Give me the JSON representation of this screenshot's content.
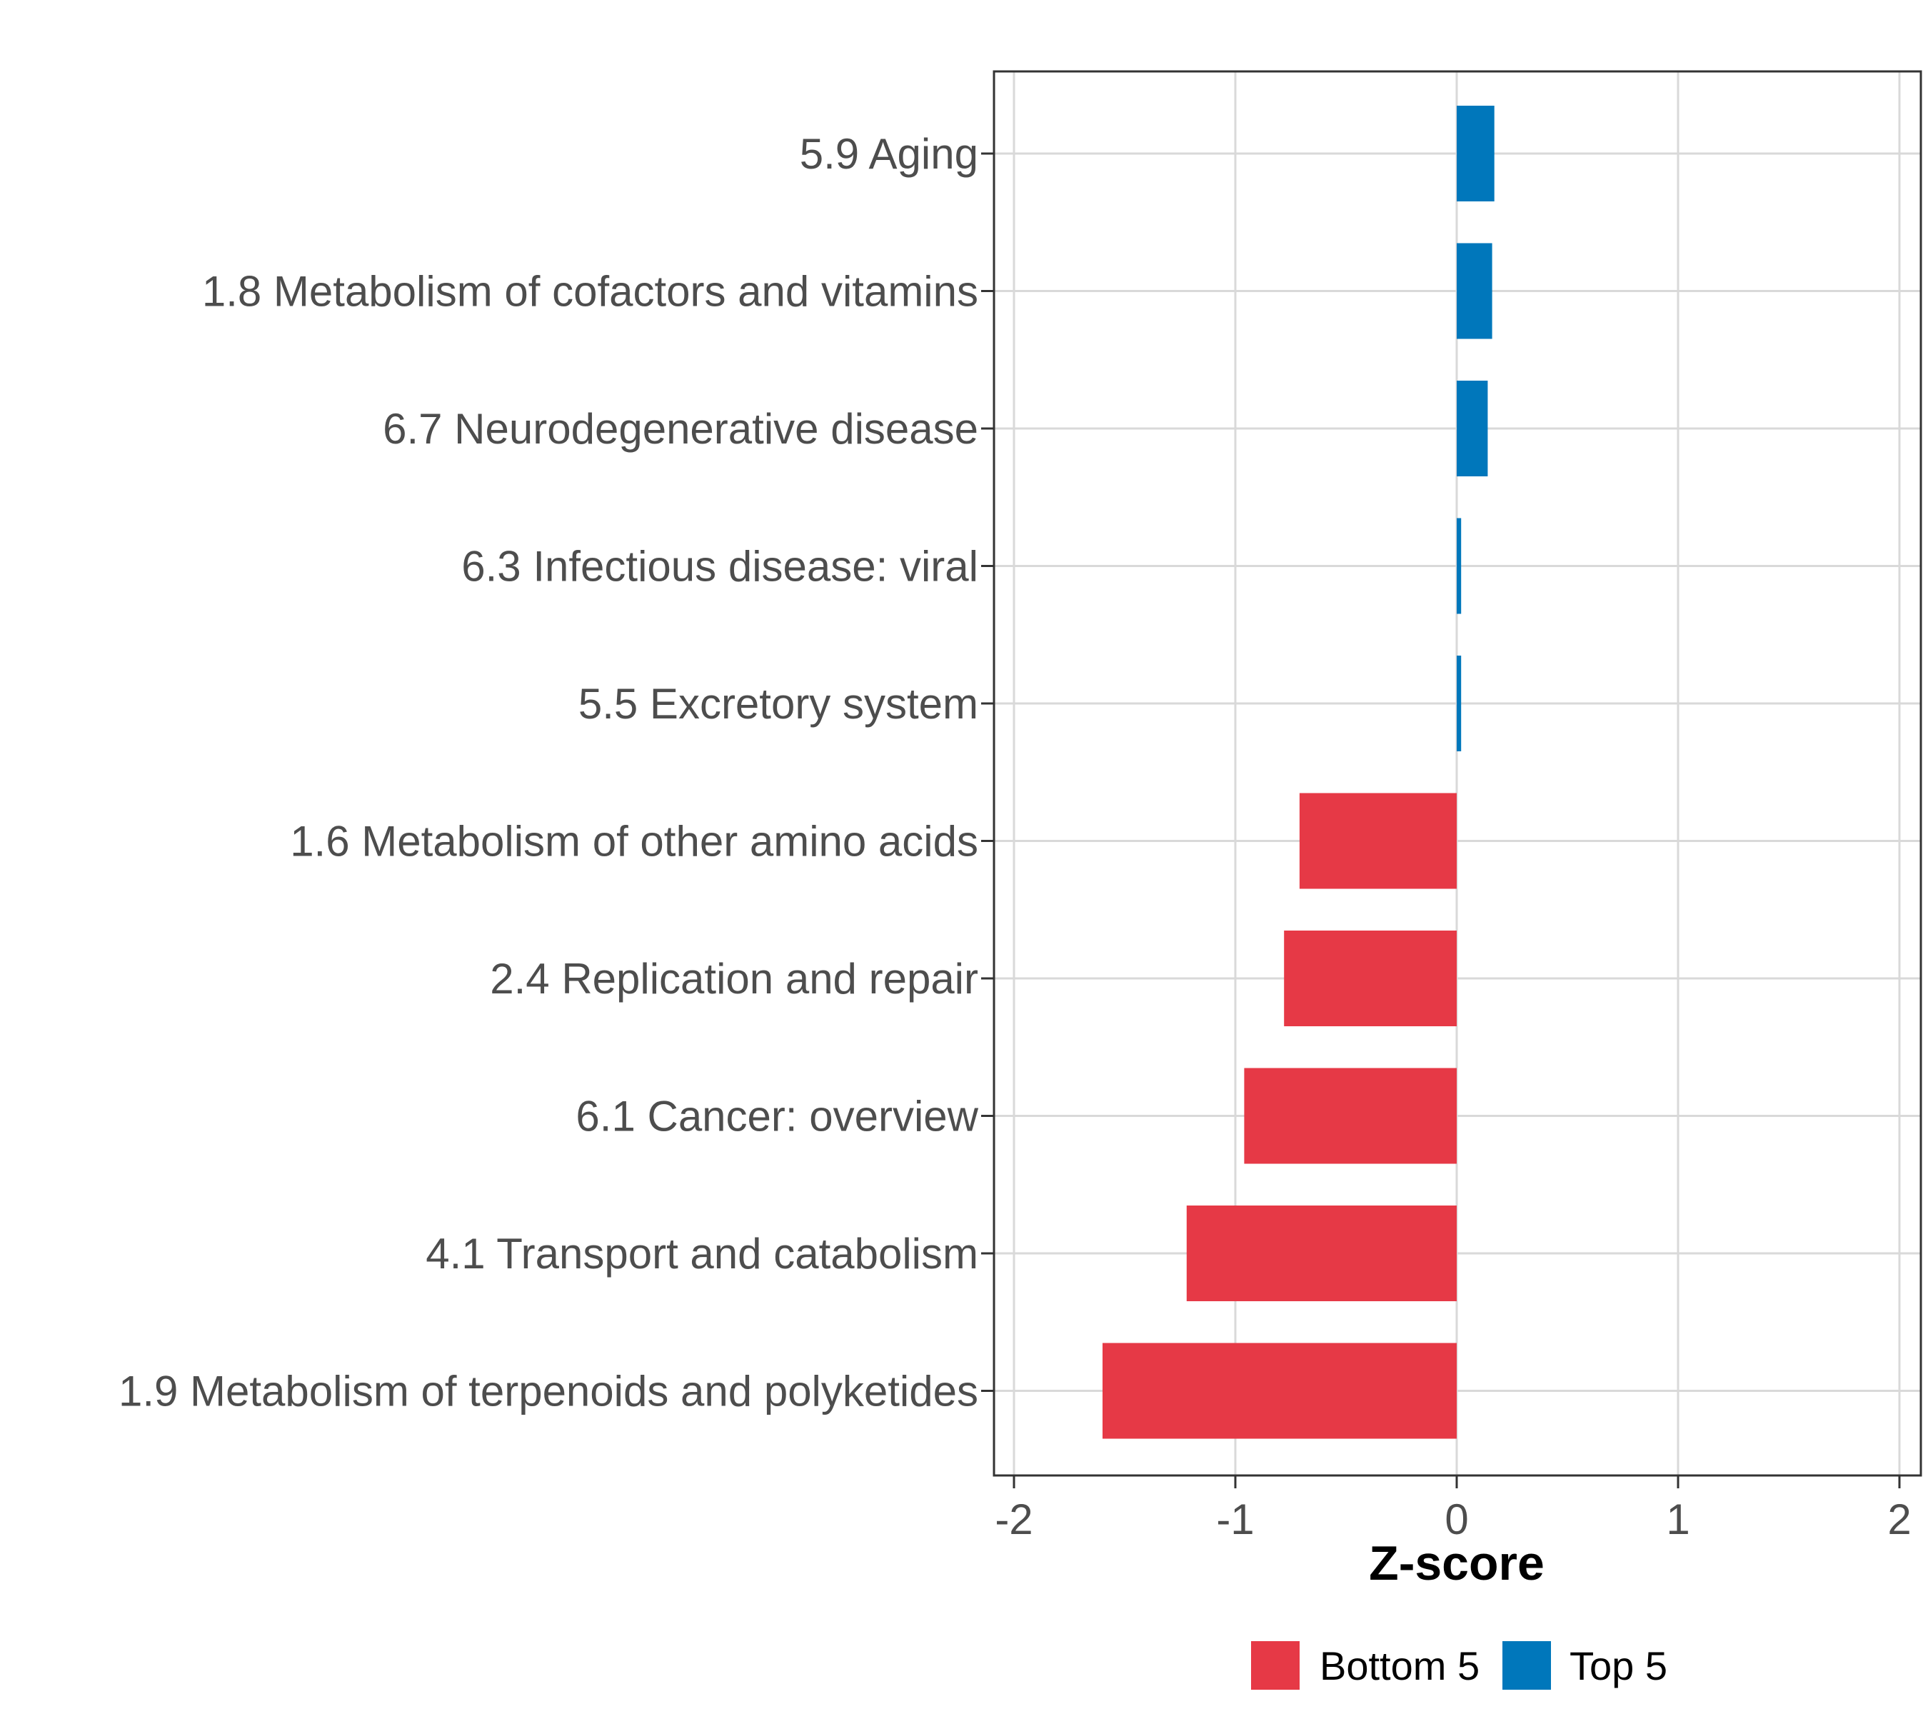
{
  "chart_data": {
    "type": "bar",
    "orientation": "horizontal",
    "title": "",
    "xlabel": "Z-score",
    "ylabel": "",
    "xlim": [
      -2,
      2
    ],
    "xticks": [
      "-2",
      "-1",
      "0",
      "1",
      "2"
    ],
    "grid": true,
    "legend_position": "bottom",
    "categories": [
      "5.9 Aging",
      "1.8 Metabolism of cofactors and vitamins",
      "6.7 Neurodegenerative disease",
      "6.3 Infectious disease: viral",
      "5.5 Excretory system",
      "1.6 Metabolism of other amino acids",
      "2.4 Replication and repair",
      "6.1 Cancer: overview",
      "4.1 Transport and catabolism",
      "1.9 Metabolism of terpenoids and polyketides"
    ],
    "values": [
      0.17,
      0.16,
      0.14,
      0.02,
      0.02,
      -0.71,
      -0.78,
      -0.96,
      -1.22,
      -1.6
    ],
    "groups": [
      "Top 5",
      "Top 5",
      "Top 5",
      "Top 5",
      "Top 5",
      "Bottom 5",
      "Bottom 5",
      "Bottom 5",
      "Bottom 5",
      "Bottom 5"
    ],
    "legend": [
      {
        "name": "Bottom 5",
        "color": "#E63946"
      },
      {
        "name": "Top 5",
        "color": "#0077BB"
      }
    ]
  }
}
